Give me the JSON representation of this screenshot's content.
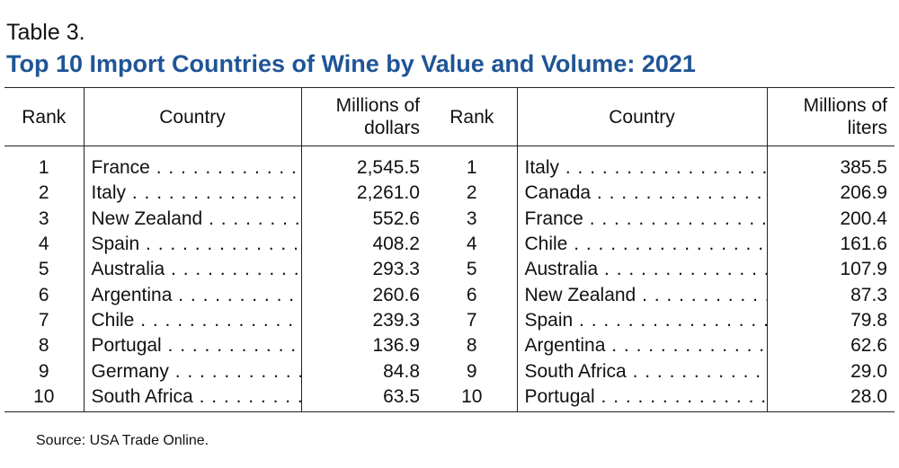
{
  "header": {
    "label": "Table 3.",
    "title": "Top 10 Import Countries of Wine by Value and Volume: 2021"
  },
  "table": {
    "columns": [
      "Rank",
      "Country",
      "Millions of dollars",
      "Rank",
      "Country",
      "Millions of liters"
    ],
    "rows": [
      [
        "1",
        "France",
        "2,545.5",
        "1",
        "Italy",
        "385.5"
      ],
      [
        "2",
        "Italy",
        "2,261.0",
        "2",
        "Canada",
        "206.9"
      ],
      [
        "3",
        "New Zealand",
        "552.6",
        "3",
        "France",
        "200.4"
      ],
      [
        "4",
        "Spain",
        "408.2",
        "4",
        "Chile",
        "161.6"
      ],
      [
        "5",
        "Australia",
        "293.3",
        "5",
        "Australia",
        "107.9"
      ],
      [
        "6",
        "Argentina",
        "260.6",
        "6",
        "New Zealand",
        "87.3"
      ],
      [
        "7",
        "Chile",
        "239.3",
        "7",
        "Spain",
        "79.8"
      ],
      [
        "8",
        "Portugal",
        "136.9",
        "8",
        "Argentina",
        "62.6"
      ],
      [
        "9",
        "Germany",
        "84.8",
        "9",
        "South Africa",
        "29.0"
      ],
      [
        "10",
        "South Africa",
        "63.5",
        "10",
        "Portugal",
        "28.0"
      ]
    ]
  },
  "footer": {
    "source": "Source: USA Trade Online."
  }
}
